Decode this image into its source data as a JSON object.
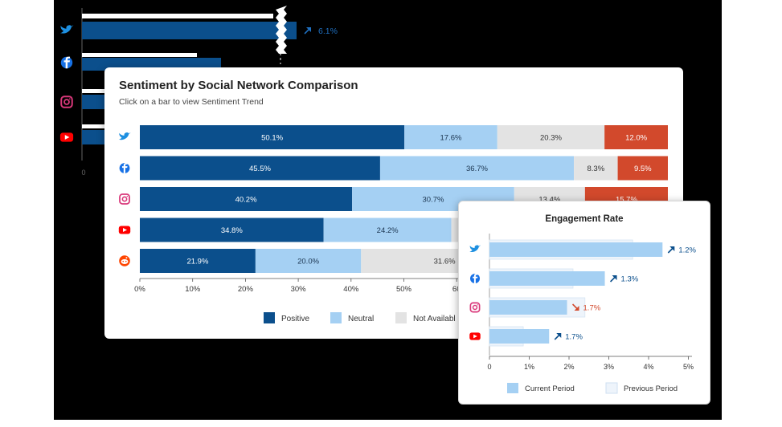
{
  "colors": {
    "positive": "#0b4f8c",
    "neutral": "#a5d0f3",
    "not_available": "#e3e3e3",
    "negative": "#d2492c",
    "current": "#a5d0f3",
    "previous": "#eef4fb",
    "up": "#0b4f8c",
    "down": "#d2492c"
  },
  "platform_icons": [
    "twitter-icon",
    "facebook-icon",
    "instagram-icon",
    "youtube-icon",
    "reddit-icon"
  ],
  "chart_data": [
    {
      "type": "bar",
      "orientation": "horizontal",
      "stacked": true,
      "title": "Sentiment by Social Network Comparison",
      "subtitle": "Click on a bar to view Sentiment Trend",
      "x_ticks": [
        "0%",
        "10%",
        "20%",
        "30%",
        "40%",
        "50%",
        "60"
      ],
      "xlim": [
        0,
        100
      ],
      "legend": {
        "placement": "bottom",
        "entries": [
          "Positive",
          "Neutral",
          "Not Availabl"
        ]
      },
      "series": [
        {
          "values": [
            50.1,
            45.5,
            40.2,
            34.8,
            21.9
          ],
          "labels": [
            "50.1%",
            "45.5%",
            "40.2%",
            "34.8%",
            "21.9%"
          ]
        },
        {
          "values": [
            17.6,
            36.7,
            30.7,
            24.2,
            20.0
          ],
          "labels": [
            "17.6%",
            "36.7%",
            "30.7%",
            "24.2%",
            "20.0%"
          ]
        },
        {
          "values": [
            20.3,
            8.3,
            13.4,
            21.0,
            31.6
          ],
          "labels": [
            "20.3%",
            "8.3%",
            "13.4%",
            "",
            "31.6%"
          ]
        },
        {
          "values": [
            12.0,
            9.5,
            15.7,
            0,
            0
          ],
          "labels": [
            "12.0%",
            "9.5%",
            "15.7%",
            "",
            ""
          ]
        }
      ]
    },
    {
      "type": "bar",
      "orientation": "horizontal",
      "title": "Engagement Rate",
      "x_ticks": [
        "0",
        "1%",
        "2%",
        "3%",
        "4%",
        "5%"
      ],
      "xlim": [
        0,
        5
      ],
      "legend": {
        "placement": "bottom",
        "entries": [
          "Current Period",
          "Previous Period"
        ]
      },
      "series": [
        {
          "values": [
            4.35,
            2.9,
            1.95,
            1.5
          ]
        },
        {
          "values": [
            3.6,
            2.1,
            2.4,
            0.85
          ]
        }
      ],
      "change_labels": [
        "1.2%",
        "1.3%",
        "1.7%",
        "1.7%"
      ],
      "change_direction": [
        "up",
        "up",
        "down",
        "up"
      ]
    },
    {
      "type": "bar",
      "orientation": "horizontal",
      "partial": true,
      "x_ticks": [
        "0"
      ],
      "change_labels": [
        "6.1%"
      ],
      "change_direction": [
        "up"
      ]
    }
  ]
}
